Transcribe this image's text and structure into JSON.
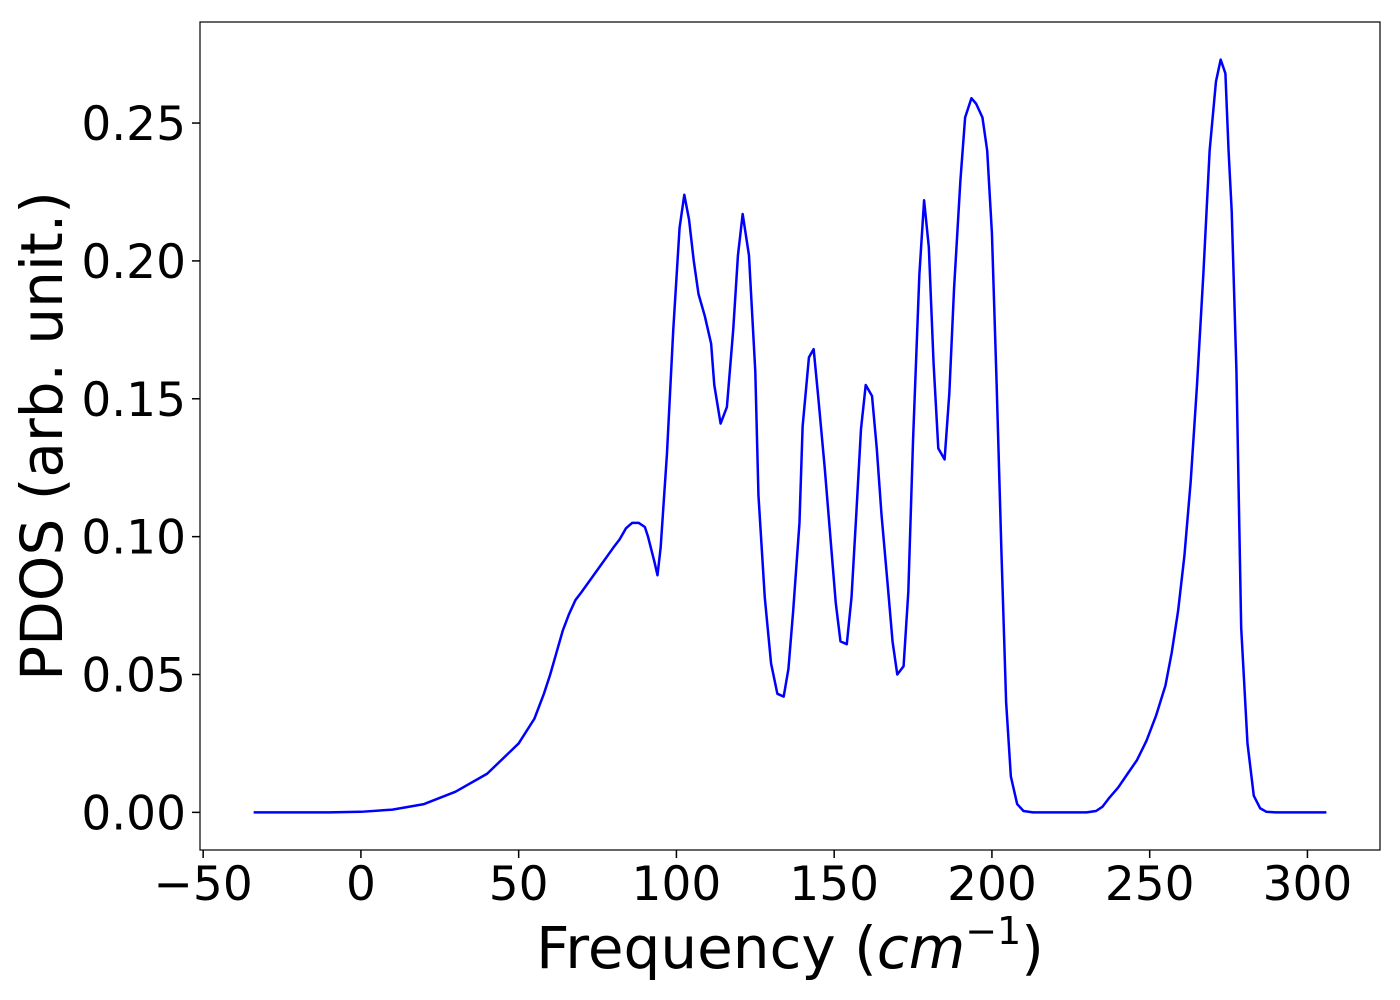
{
  "chart_data": {
    "type": "line",
    "xlabel_parts": [
      "Frequency (",
      "cm",
      "−1",
      ")"
    ],
    "ylabel": "PDOS (arb. unit.)",
    "color": "#0000ff",
    "x": [
      -34,
      -10,
      0,
      10,
      20,
      30,
      40,
      50,
      55,
      58,
      60,
      62,
      64,
      66,
      68,
      70,
      75,
      80,
      82,
      84,
      86,
      88,
      90,
      91,
      93,
      94,
      95,
      97,
      99,
      101,
      102.5,
      104,
      105.5,
      107,
      109,
      111,
      112,
      114,
      116,
      118,
      119.5,
      121,
      123,
      125,
      126,
      128,
      130,
      132,
      134,
      135.5,
      137,
      139,
      140,
      142,
      143.5,
      145,
      147,
      149,
      150.5,
      152,
      154,
      155.5,
      157,
      158.5,
      160,
      162,
      163.5,
      165,
      167,
      168.5,
      170,
      172,
      173.5,
      175,
      177,
      178.5,
      180,
      181.5,
      183,
      185,
      186.5,
      188,
      190,
      191.5,
      193.5,
      195,
      197,
      198.5,
      200,
      201.5,
      203,
      204.5,
      206,
      208,
      210,
      213,
      230,
      233,
      235,
      237,
      240,
      243,
      246,
      249,
      252,
      255,
      257,
      259,
      261,
      263,
      265,
      267,
      269,
      271,
      272.5,
      274,
      275,
      276,
      277.5,
      279,
      281,
      283,
      285,
      287,
      290,
      306
    ],
    "values": [
      0,
      0,
      0.0002,
      0.001,
      0.003,
      0.0075,
      0.014,
      0.025,
      0.034,
      0.043,
      0.05,
      0.058,
      0.066,
      0.072,
      0.077,
      0.08,
      0.088,
      0.096,
      0.099,
      0.103,
      0.105,
      0.105,
      0.1035,
      0.1,
      0.091,
      0.086,
      0.096,
      0.13,
      0.175,
      0.212,
      0.224,
      0.215,
      0.2,
      0.188,
      0.18,
      0.17,
      0.155,
      0.141,
      0.147,
      0.175,
      0.202,
      0.217,
      0.202,
      0.16,
      0.115,
      0.078,
      0.054,
      0.043,
      0.042,
      0.052,
      0.073,
      0.105,
      0.14,
      0.165,
      0.168,
      0.15,
      0.125,
      0.097,
      0.076,
      0.062,
      0.061,
      0.078,
      0.108,
      0.139,
      0.155,
      0.151,
      0.132,
      0.108,
      0.082,
      0.062,
      0.05,
      0.053,
      0.08,
      0.135,
      0.195,
      0.222,
      0.205,
      0.163,
      0.132,
      0.128,
      0.152,
      0.19,
      0.229,
      0.252,
      0.259,
      0.257,
      0.252,
      0.24,
      0.21,
      0.155,
      0.095,
      0.04,
      0.013,
      0.003,
      0.0005,
      0,
      0,
      0.0005,
      0.002,
      0.005,
      0.009,
      0.014,
      0.019,
      0.026,
      0.035,
      0.046,
      0.058,
      0.073,
      0.093,
      0.12,
      0.155,
      0.195,
      0.24,
      0.265,
      0.273,
      0.268,
      0.24,
      0.218,
      0.16,
      0.067,
      0.025,
      0.006,
      0.0015,
      0.0002,
      0,
      0
    ],
    "xlim": [
      -51,
      323
    ],
    "ylim": [
      -0.01365,
      0.28665
    ],
    "xticks": [
      {
        "value": -50,
        "label": "−50"
      },
      0,
      50,
      100,
      150,
      200,
      250,
      300
    ],
    "yticks": [
      {
        "value": 0,
        "label": "0.00"
      },
      {
        "value": 0.05,
        "label": "0.05"
      },
      {
        "value": 0.1,
        "label": "0.10"
      },
      {
        "value": 0.15,
        "label": "0.15"
      },
      {
        "value": 0.2,
        "label": "0.20"
      },
      {
        "value": 0.25,
        "label": "0.25"
      }
    ]
  }
}
